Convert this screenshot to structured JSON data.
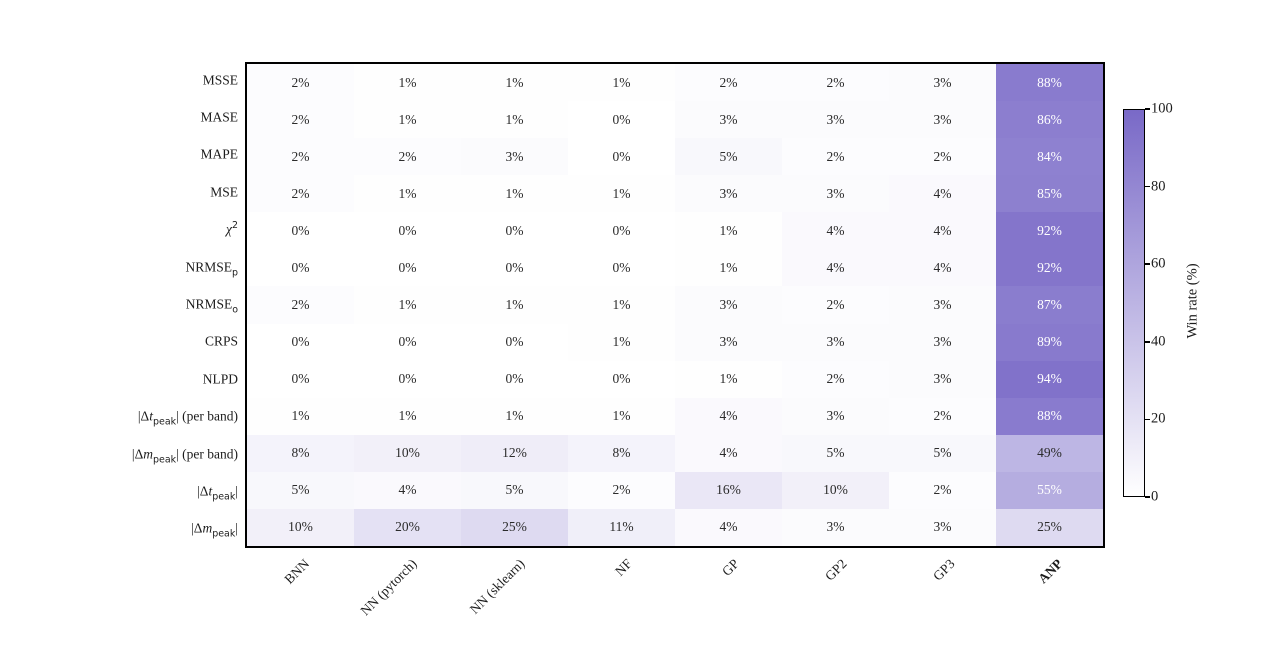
{
  "chart_data": {
    "type": "heatmap",
    "rows": [
      "MSSE",
      "MASE",
      "MAPE",
      "MSE",
      "*χ*^{2}",
      "NRMSE_{p}",
      "NRMSE_{o}",
      "CRPS",
      "NLPD",
      "|Δ*t*_{peak}| (per band)",
      "|Δ*m*_{peak}| (per band)",
      "|Δ*t*_{peak}|",
      "|Δ*m*_{peak}|"
    ],
    "columns": [
      {
        "label": "BNN",
        "bold": false
      },
      {
        "label": "NN (pytorch)",
        "bold": false
      },
      {
        "label": "NN (sklearn)",
        "bold": false
      },
      {
        "label": "NF",
        "bold": false
      },
      {
        "label": "GP",
        "bold": false
      },
      {
        "label": "GP2",
        "bold": false
      },
      {
        "label": "GP3",
        "bold": false
      },
      {
        "label": "ANP",
        "bold": true
      }
    ],
    "values": [
      [
        2,
        1,
        1,
        1,
        2,
        2,
        3,
        88
      ],
      [
        2,
        1,
        1,
        0,
        3,
        3,
        3,
        86
      ],
      [
        2,
        2,
        3,
        0,
        5,
        2,
        2,
        84
      ],
      [
        2,
        1,
        1,
        1,
        3,
        3,
        4,
        85
      ],
      [
        0,
        0,
        0,
        0,
        1,
        4,
        4,
        92
      ],
      [
        0,
        0,
        0,
        0,
        1,
        4,
        4,
        92
      ],
      [
        2,
        1,
        1,
        1,
        3,
        2,
        3,
        87
      ],
      [
        0,
        0,
        0,
        1,
        3,
        3,
        3,
        89
      ],
      [
        0,
        0,
        0,
        0,
        1,
        2,
        3,
        94
      ],
      [
        1,
        1,
        1,
        1,
        4,
        3,
        2,
        88
      ],
      [
        8,
        10,
        12,
        8,
        4,
        5,
        5,
        49
      ],
      [
        5,
        4,
        5,
        2,
        16,
        10,
        2,
        55
      ],
      [
        10,
        20,
        25,
        11,
        4,
        3,
        3,
        25
      ]
    ],
    "value_suffix": "%",
    "colorbar": {
      "label": "Win rate (%)",
      "min": 0,
      "max": 100,
      "ticks": [
        0,
        20,
        40,
        60,
        80,
        100
      ]
    },
    "colors": {
      "low": "#ffffff",
      "high": "#7969c7",
      "text_dark": "#2b2b2b",
      "text_light": "#ffffff",
      "text_threshold": 50,
      "border": "#000000"
    },
    "legend_position": "right-colorbar",
    "grid": false,
    "title": ""
  }
}
